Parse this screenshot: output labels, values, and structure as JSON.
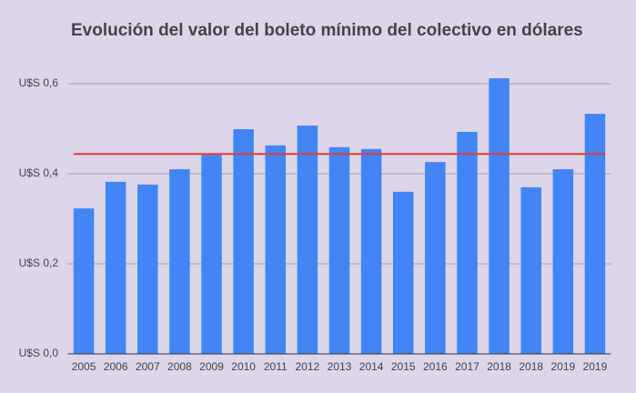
{
  "chart_data": {
    "type": "bar",
    "title": "Evolución del valor del boleto mínimo del colectivo en dólares",
    "categories": [
      "2005",
      "2006",
      "2007",
      "2008",
      "2009",
      "2010",
      "2011",
      "2012",
      "2013",
      "2014",
      "2015",
      "2016",
      "2017",
      "2018",
      "2018",
      "2019",
      "2019"
    ],
    "values": [
      0.323,
      0.382,
      0.376,
      0.41,
      0.442,
      0.499,
      0.463,
      0.507,
      0.459,
      0.455,
      0.36,
      0.426,
      0.493,
      0.612,
      0.37,
      0.41,
      0.533
    ],
    "color": "#4285f4",
    "reference_line": {
      "value": 0.444,
      "color": "#e53935"
    },
    "ylim": [
      0,
      0.65
    ],
    "yticks": [
      {
        "value": 0,
        "label": "U$S 0,0"
      },
      {
        "value": 0.2,
        "label": "U$S 0,2"
      },
      {
        "value": 0.4,
        "label": "U$S 0,4"
      },
      {
        "value": 0.6,
        "label": "U$S 0,6"
      }
    ],
    "grid": true
  }
}
